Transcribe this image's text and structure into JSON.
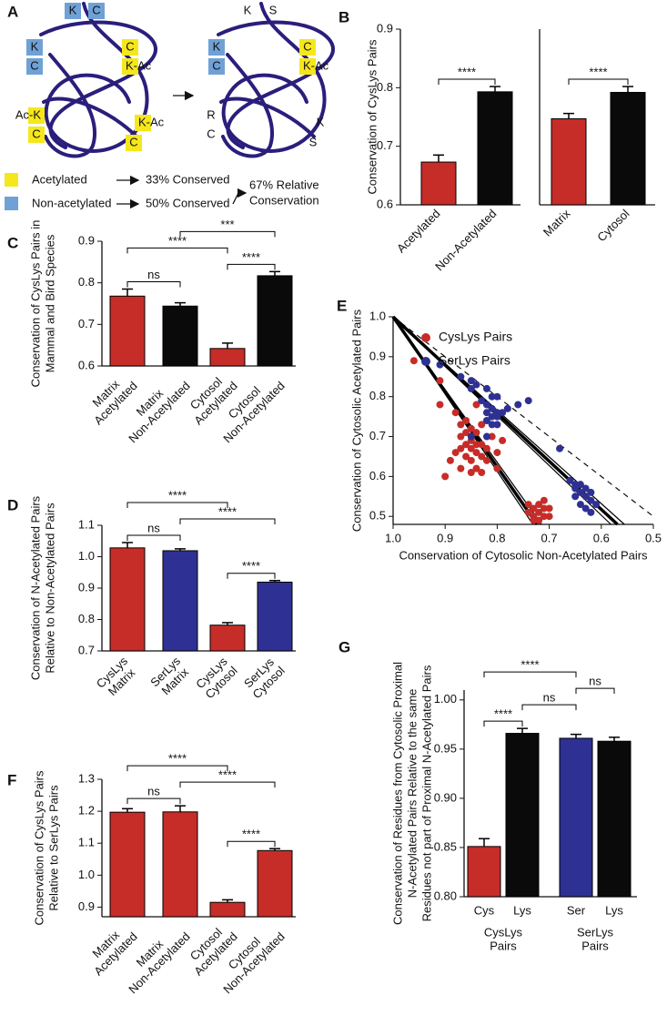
{
  "diagram": {
    "panel": "A",
    "left": [
      "K",
      "C",
      "K",
      "C",
      "C",
      "K-Ac",
      "Ac-K",
      "C",
      "K-Ac",
      "C"
    ],
    "right": [
      "K",
      "S",
      "K",
      "C",
      "C",
      "K-Ac",
      "R",
      "C",
      "K",
      "S"
    ],
    "legend": [
      "Acetylated",
      "Non-acetylated"
    ],
    "outcomes": [
      "33% Conserved",
      "50% Conserved"
    ],
    "result": [
      "67% Relative",
      "Conservation"
    ]
  },
  "chart_data": [
    {
      "type": "bar",
      "panel": "B",
      "ylabel": [
        "Conservation of CysLys Pairs"
      ],
      "categories": [
        "Acetylated",
        "Non-Acetylated"
      ],
      "values": [
        0.673,
        0.793
      ],
      "errors": [
        0.012,
        0.009
      ],
      "colors": [
        "#c62d28",
        "#0a0a0a"
      ],
      "ylim": [
        0.6,
        0.9
      ],
      "yticks": [
        0.6,
        0.7,
        0.8,
        0.9
      ],
      "annotations": [
        "****"
      ]
    },
    {
      "type": "bar",
      "categories": [
        "Matrix",
        "Cytosol"
      ],
      "values": [
        0.747,
        0.792
      ],
      "errors": [
        0.009,
        0.01
      ],
      "colors": [
        "#c62d28",
        "#0a0a0a"
      ],
      "ylim": [
        0.6,
        0.9
      ],
      "annotations": [
        "****"
      ]
    },
    {
      "type": "bar",
      "panel": "C",
      "ylabel": [
        "Conservation of CysLys Pairs in",
        "Mammal and Bird Species"
      ],
      "categories": [
        [
          "Matrix",
          "Acetylated"
        ],
        [
          "Matrix",
          "Non-Acetylated"
        ],
        [
          "Cytosol",
          "Acetylated"
        ],
        [
          "Cytosol",
          "Non-Acetylated"
        ]
      ],
      "values": [
        0.768,
        0.744,
        0.642,
        0.817
      ],
      "errors": [
        0.017,
        0.008,
        0.013,
        0.01
      ],
      "colors": [
        "#c62d28",
        "#0a0a0a",
        "#c62d28",
        "#0a0a0a"
      ],
      "ylim": [
        0.6,
        0.9
      ],
      "yticks": [
        0.6,
        0.7,
        0.8,
        0.9
      ],
      "annotations": [
        "ns",
        "****",
        "****",
        "***"
      ]
    },
    {
      "type": "bar",
      "panel": "D",
      "ylabel": [
        "Conservation of N-Acetylated Pairs",
        "Relative to Non-Acetylated Pairs"
      ],
      "categories": [
        [
          "CysLys",
          "Matrix"
        ],
        [
          "SerLys",
          "Matrix"
        ],
        [
          "CysLys",
          "Cytosol"
        ],
        [
          "SerLys",
          "Cytosol"
        ]
      ],
      "values": [
        1.028,
        1.019,
        0.782,
        0.919
      ],
      "errors": [
        0.017,
        0.006,
        0.008,
        0.005
      ],
      "colors": [
        "#c62d28",
        "#2e3193",
        "#c62d28",
        "#2e3193"
      ],
      "ylim": [
        0.7,
        1.1
      ],
      "yticks": [
        0.7,
        0.8,
        0.9,
        {
          "value": 1,
          "label": "1.0"
        },
        1.1
      ],
      "annotations": [
        "ns",
        "****",
        "****",
        "****"
      ]
    },
    {
      "type": "scatter",
      "panel": "E",
      "xlabel": "Conservation of Cytosolic Non-Acetylated Pairs",
      "ylabel": "Conservation of Cytosolic Acetylated Pairs",
      "xlim": [
        1.0,
        0.5
      ],
      "ylim": [
        0.48,
        1.0
      ],
      "xticks": [
        {
          "value": 1,
          "label": "1.0"
        },
        0.9,
        0.8,
        0.7,
        0.6,
        0.5
      ],
      "yticks": [
        0.5,
        0.6,
        0.7,
        0.8,
        0.9,
        {
          "value": 1,
          "label": "1.0"
        }
      ],
      "legend": "upper right",
      "series": [
        {
          "name": "CysLys Pairs",
          "color": "#c62d28",
          "x": [
            0.96,
            0.91,
            0.91,
            0.88,
            0.87,
            0.86,
            0.85,
            0.84,
            0.87,
            0.85,
            0.86,
            0.84,
            0.83,
            0.82,
            0.85,
            0.87,
            0.88,
            0.84,
            0.83,
            0.86,
            0.85,
            0.82,
            0.89,
            0.87,
            0.84,
            0.83,
            0.85,
            0.8,
            0.79,
            0.81,
            0.86,
            0.83,
            0.84,
            0.8,
            0.9,
            0.72,
            0.73,
            0.71,
            0.72,
            0.74,
            0.73,
            0.71,
            0.72,
            0.7,
            0.71,
            0.7,
            0.74,
            0.73
          ],
          "values": [
            0.89,
            0.84,
            0.78,
            0.76,
            0.73,
            0.74,
            0.72,
            0.71,
            0.7,
            0.69,
            0.68,
            0.68,
            0.68,
            0.67,
            0.67,
            0.67,
            0.66,
            0.66,
            0.65,
            0.65,
            0.64,
            0.64,
            0.64,
            0.62,
            0.62,
            0.61,
            0.61,
            0.66,
            0.69,
            0.7,
            0.71,
            0.73,
            0.78,
            0.62,
            0.6,
            0.53,
            0.52,
            0.52,
            0.51,
            0.51,
            0.5,
            0.5,
            0.49,
            0.5,
            0.54,
            0.52,
            0.53,
            0.49
          ]
        },
        {
          "name": "SerLys Pairs",
          "color": "#2e3193",
          "x": [
            0.91,
            0.87,
            0.85,
            0.84,
            0.85,
            0.82,
            0.81,
            0.8,
            0.83,
            0.82,
            0.81,
            0.8,
            0.82,
            0.81,
            0.8,
            0.79,
            0.78,
            0.82,
            0.81,
            0.76,
            0.74,
            0.85,
            0.82,
            0.8,
            0.68,
            0.64,
            0.63,
            0.65,
            0.64,
            0.62,
            0.63,
            0.65,
            0.62,
            0.64,
            0.61,
            0.63,
            0.62,
            0.65,
            0.66
          ],
          "values": [
            0.88,
            0.85,
            0.84,
            0.83,
            0.82,
            0.82,
            0.8,
            0.8,
            0.79,
            0.78,
            0.77,
            0.76,
            0.76,
            0.75,
            0.75,
            0.76,
            0.77,
            0.74,
            0.73,
            0.78,
            0.79,
            0.7,
            0.7,
            0.73,
            0.67,
            0.58,
            0.57,
            0.57,
            0.56,
            0.56,
            0.55,
            0.55,
            0.54,
            0.53,
            0.53,
            0.52,
            0.51,
            0.58,
            0.59
          ]
        }
      ]
    },
    {
      "type": "bar",
      "panel": "F",
      "ylabel": [
        "Conservation of CysLys Pairs",
        "Relative to SerLys Pairs"
      ],
      "categories": [
        [
          "Matrix",
          "Acetylated"
        ],
        [
          "Matrix",
          "Non-Acetylated"
        ],
        [
          "Cytosol",
          "Acetylated"
        ],
        [
          "Cytosol",
          "Non-Acetylated"
        ]
      ],
      "values": [
        1.197,
        1.198,
        0.915,
        1.077
      ],
      "errors": [
        0.011,
        0.019,
        0.008,
        0.006
      ],
      "colors": [
        "#c62d28",
        "#c62d28",
        "#c62d28",
        "#c62d28"
      ],
      "ylim": [
        0.87,
        1.3
      ],
      "yticks": [
        0.9,
        {
          "value": 1,
          "label": "1.0"
        },
        1.1,
        1.2,
        1.3
      ],
      "annotations": [
        "ns",
        "****",
        "****",
        "****"
      ]
    },
    {
      "type": "bar",
      "panel": "G",
      "ylabel": [
        "Conservation of Residues from Cytosolic Proximal",
        "N-Acetylated Pairs Relative to the same",
        "Residues not part of Proximal N-Acetylated Pairs"
      ],
      "categories": [
        "Cys",
        "Lys",
        "Ser",
        "Lys"
      ],
      "groups": [
        [
          "CysLys",
          "Pairs"
        ],
        [
          "SerLys",
          "Pairs"
        ]
      ],
      "values": [
        0.851,
        0.966,
        0.961,
        0.958
      ],
      "errors": [
        0.008,
        0.005,
        0.004,
        0.004
      ],
      "colors": [
        "#c62d28",
        "#0a0a0a",
        "#2e3193",
        "#0a0a0a"
      ],
      "ylim": [
        0.8,
        1.01
      ],
      "yticks": [
        {
          "value": 0.8,
          "label": "0.80"
        },
        {
          "value": 0.85,
          "label": "0.85"
        },
        {
          "value": 0.9,
          "label": "0.90"
        },
        {
          "value": 0.95,
          "label": "0.95"
        },
        {
          "value": 1,
          "label": "1.00"
        }
      ],
      "annotations": [
        "****",
        "ns",
        "ns",
        "****"
      ]
    }
  ]
}
